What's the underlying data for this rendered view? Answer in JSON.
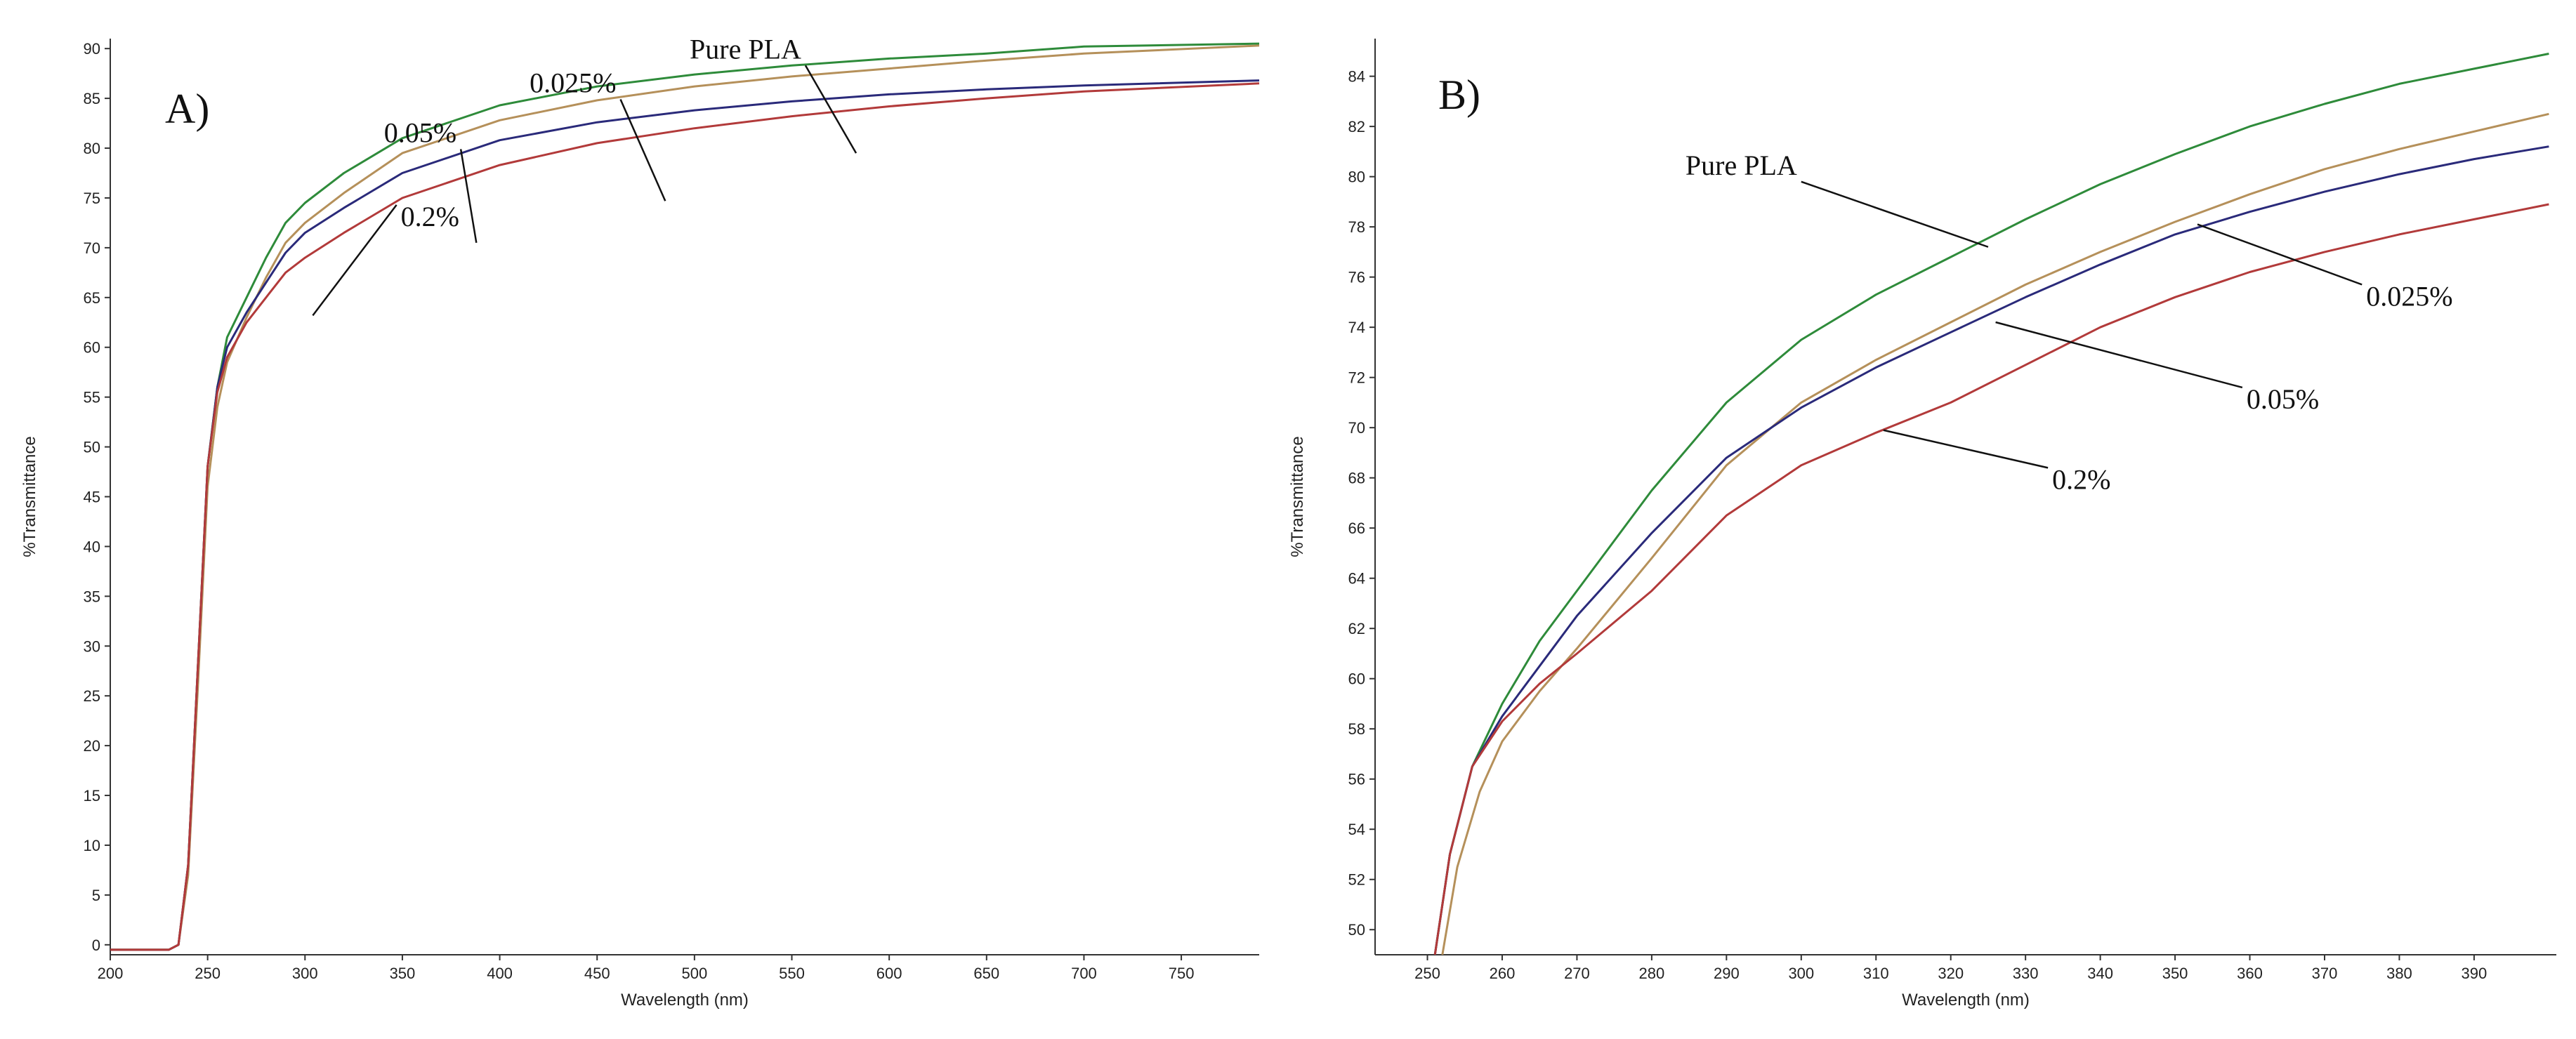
{
  "chart_data": [
    {
      "type": "line",
      "panel_label": "A)",
      "xlabel": "Wavelength (nm)",
      "ylabel": "%Transmittance",
      "xlim": [
        200,
        790
      ],
      "ylim": [
        -1,
        91
      ],
      "x_ticks": [
        200,
        250,
        300,
        350,
        400,
        450,
        500,
        550,
        600,
        650,
        700,
        750
      ],
      "y_ticks": [
        0,
        5,
        10,
        15,
        20,
        25,
        30,
        35,
        40,
        45,
        50,
        55,
        60,
        65,
        70,
        75,
        80,
        85,
        90
      ],
      "series": [
        {
          "name": "Pure PLA",
          "color": "#2e8b3a",
          "x": [
            200,
            230,
            235,
            240,
            245,
            250,
            255,
            260,
            270,
            280,
            290,
            300,
            320,
            350,
            400,
            450,
            500,
            550,
            600,
            650,
            700,
            790
          ],
          "y": [
            -0.5,
            -0.5,
            0,
            8,
            28,
            48,
            56,
            61,
            65,
            69,
            72.5,
            74.5,
            77.5,
            81,
            84.3,
            86.2,
            87.4,
            88.3,
            89,
            89.5,
            90.2,
            90.5
          ]
        },
        {
          "name": "0.025%",
          "color": "#b5905a",
          "x": [
            200,
            230,
            235,
            240,
            245,
            250,
            255,
            260,
            270,
            280,
            290,
            300,
            320,
            350,
            400,
            450,
            500,
            550,
            600,
            650,
            700,
            790
          ],
          "y": [
            -0.5,
            -0.5,
            0,
            7,
            26,
            46,
            54,
            58.5,
            63,
            67,
            70.5,
            72.5,
            75.5,
            79.5,
            82.8,
            84.8,
            86.2,
            87.2,
            88,
            88.8,
            89.5,
            90.3
          ]
        },
        {
          "name": "0.05%",
          "color": "#2a2a7a",
          "x": [
            200,
            230,
            235,
            240,
            245,
            250,
            255,
            260,
            270,
            280,
            290,
            300,
            320,
            350,
            400,
            450,
            500,
            550,
            600,
            650,
            700,
            790
          ],
          "y": [
            -0.5,
            -0.5,
            0,
            8,
            28,
            48,
            56,
            60,
            63.5,
            66.5,
            69.5,
            71.5,
            74,
            77.5,
            80.8,
            82.6,
            83.8,
            84.7,
            85.4,
            85.9,
            86.3,
            86.8
          ]
        },
        {
          "name": "0.2%",
          "color": "#b23a3a",
          "x": [
            200,
            230,
            235,
            240,
            245,
            250,
            255,
            260,
            270,
            280,
            290,
            300,
            320,
            350,
            400,
            450,
            500,
            550,
            600,
            650,
            700,
            790
          ],
          "y": [
            -0.5,
            -0.5,
            0,
            8,
            28,
            48,
            55.5,
            59,
            62.5,
            65,
            67.5,
            69,
            71.5,
            75,
            78.3,
            80.5,
            82,
            83.2,
            84.2,
            85,
            85.7,
            86.5
          ]
        }
      ],
      "annotations": [
        {
          "text": "Pure PLA",
          "x": 583,
          "y": 79.5,
          "tx": 557,
          "ty": 88.3
        },
        {
          "text": "0.025%",
          "x": 485,
          "y": 74.7,
          "tx": 462,
          "ty": 84.9
        },
        {
          "text": "0.05%",
          "x": 388,
          "y": 70.5,
          "tx": 380,
          "ty": 79.9
        },
        {
          "text": "0.2%",
          "x": 304,
          "y": 63.2,
          "tx": 347,
          "ty": 74.3
        }
      ]
    },
    {
      "type": "line",
      "panel_label": "B)",
      "xlabel": "Wavelength (nm)",
      "ylabel": "%Transmittance",
      "xlim": [
        243,
        401
      ],
      "ylim": [
        49,
        85.5
      ],
      "x_ticks": [
        250,
        260,
        270,
        280,
        290,
        300,
        310,
        320,
        330,
        340,
        350,
        360,
        370,
        380,
        390
      ],
      "y_ticks": [
        50,
        52,
        54,
        56,
        58,
        60,
        62,
        64,
        66,
        68,
        70,
        72,
        74,
        76,
        78,
        80,
        82,
        84
      ],
      "series": [
        {
          "name": "Pure PLA",
          "color": "#2e8b3a",
          "x": [
            251,
            253,
            256,
            260,
            265,
            270,
            280,
            290,
            300,
            310,
            320,
            330,
            340,
            350,
            360,
            370,
            380,
            390,
            400
          ],
          "y": [
            49,
            53,
            56.5,
            59,
            61.5,
            63.5,
            67.5,
            71,
            73.5,
            75.3,
            76.8,
            78.3,
            79.7,
            80.9,
            82,
            82.9,
            83.7,
            84.3,
            84.9
          ]
        },
        {
          "name": "0.025%",
          "color": "#b5905a",
          "x": [
            252,
            254,
            257,
            260,
            265,
            270,
            280,
            290,
            300,
            310,
            320,
            330,
            340,
            350,
            360,
            370,
            380,
            390,
            400
          ],
          "y": [
            49,
            52.5,
            55.5,
            57.5,
            59.5,
            61.2,
            64.8,
            68.5,
            71,
            72.7,
            74.2,
            75.7,
            77,
            78.2,
            79.3,
            80.3,
            81.1,
            81.8,
            82.5
          ]
        },
        {
          "name": "0.05%",
          "color": "#2a2a7a",
          "x": [
            251,
            253,
            256,
            260,
            265,
            270,
            280,
            290,
            300,
            310,
            320,
            330,
            340,
            350,
            360,
            370,
            380,
            390,
            400
          ],
          "y": [
            49,
            53,
            56.5,
            58.5,
            60.5,
            62.5,
            65.8,
            68.8,
            70.8,
            72.4,
            73.8,
            75.2,
            76.5,
            77.7,
            78.6,
            79.4,
            80.1,
            80.7,
            81.2
          ]
        },
        {
          "name": "0.2%",
          "color": "#b23a3a",
          "x": [
            251,
            253,
            256,
            260,
            265,
            270,
            280,
            290,
            300,
            310,
            320,
            330,
            340,
            350,
            360,
            370,
            380,
            390,
            400
          ],
          "y": [
            49,
            53,
            56.5,
            58.3,
            59.8,
            61,
            63.5,
            66.5,
            68.5,
            69.8,
            71,
            72.5,
            74,
            75.2,
            76.2,
            77,
            77.7,
            78.3,
            78.9
          ]
        }
      ],
      "annotations": [
        {
          "text": "Pure PLA",
          "x": 325,
          "y": 77.2,
          "tx": 300,
          "ty": 79.8
        },
        {
          "text": "0.025%",
          "x": 353,
          "y": 78.1,
          "tx": 375,
          "ty": 75.7
        },
        {
          "text": "0.05%",
          "x": 326,
          "y": 74.2,
          "tx": 359,
          "ty": 71.6
        },
        {
          "text": "0.2%",
          "x": 311,
          "y": 69.9,
          "tx": 333,
          "ty": 68.4
        }
      ]
    }
  ]
}
